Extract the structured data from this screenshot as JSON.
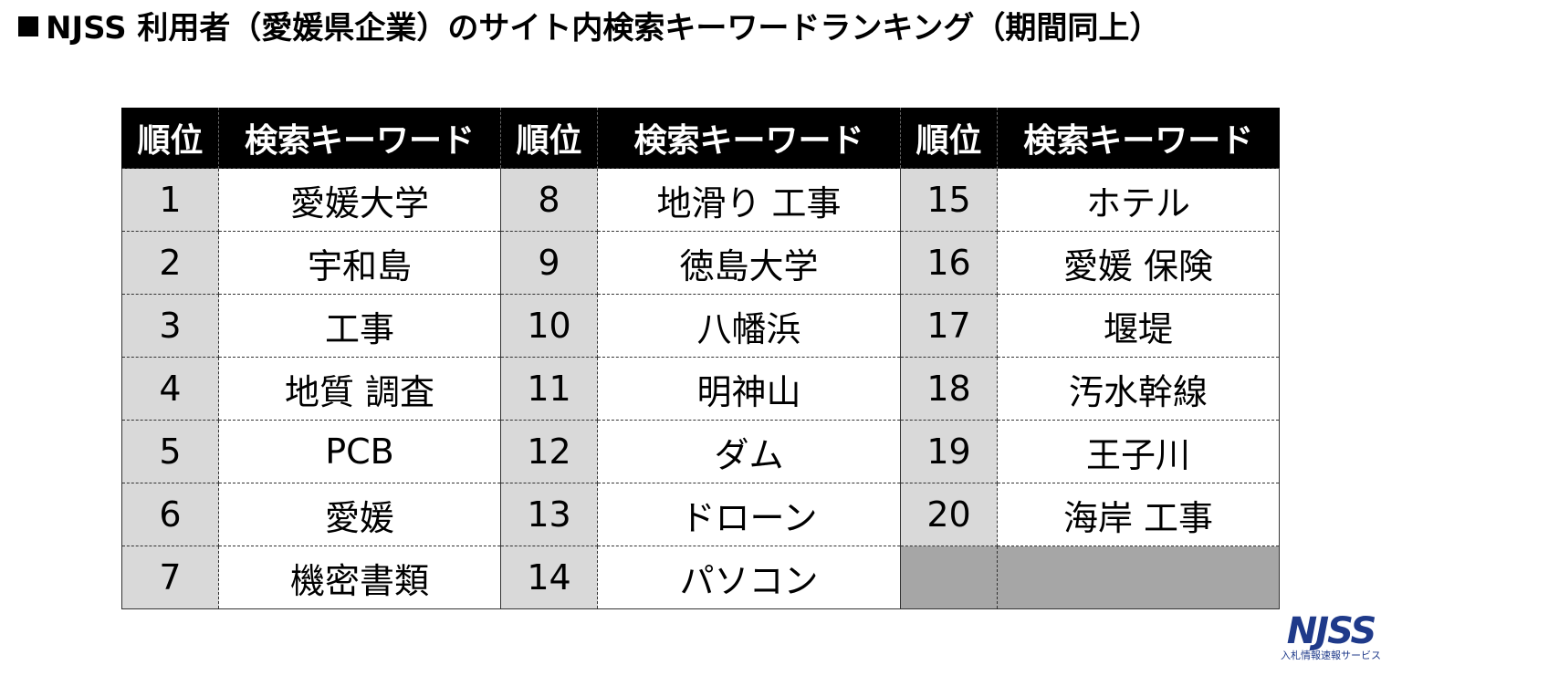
{
  "title": "NJSS 利用者（愛媛県企業）のサイト内検索キーワードランキング（期間同上）",
  "table": {
    "headers": [
      "順位",
      "検索キーワード",
      "順位",
      "検索キーワード",
      "順位",
      "検索キーワード"
    ],
    "rows": [
      [
        "1",
        "愛媛大学",
        "8",
        "地滑り 工事",
        "15",
        "ホテル"
      ],
      [
        "2",
        "宇和島",
        "9",
        "徳島大学",
        "16",
        "愛媛 保険"
      ],
      [
        "3",
        "工事",
        "10",
        "八幡浜",
        "17",
        "堰堤"
      ],
      [
        "4",
        "地質 調査",
        "11",
        "明神山",
        "18",
        "汚水幹線"
      ],
      [
        "5",
        "PCB",
        "12",
        "ダム",
        "19",
        "王子川"
      ],
      [
        "6",
        "愛媛",
        "13",
        "ドローン",
        "20",
        "海岸 工事"
      ],
      [
        "7",
        "機密書類",
        "14",
        "パソコン",
        "",
        ""
      ]
    ]
  },
  "logo": {
    "mark": "NJSS",
    "sub": "入札情報速報サービス"
  },
  "colors": {
    "header_bg": "#000000",
    "rank_bg": "#d9d9d9",
    "empty_bg": "#a6a6a6",
    "logo": "#1f3a8a"
  }
}
